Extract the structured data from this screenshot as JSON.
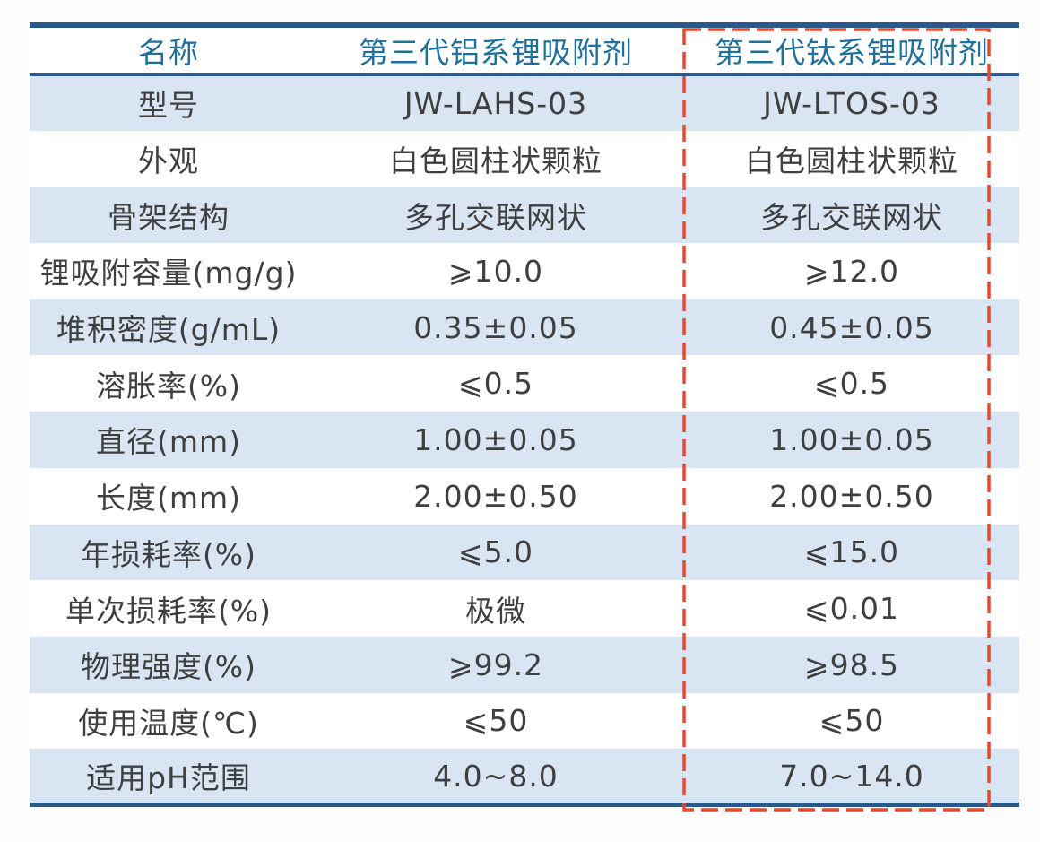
{
  "table": {
    "header": {
      "name_col": "名称",
      "aluminum_col": "第三代铝系锂吸附剂",
      "titanium_col": "第三代钛系锂吸附剂"
    },
    "rows": [
      {
        "label": "型号",
        "aluminum": "JW-LAHS-03",
        "titanium": "JW-LTOS-03"
      },
      {
        "label": "外观",
        "aluminum": "白色圆柱状颗粒",
        "titanium": "白色圆柱状颗粒"
      },
      {
        "label": "骨架结构",
        "aluminum": "多孔交联网状",
        "titanium": "多孔交联网状"
      },
      {
        "label": "锂吸附容量(mg/g)",
        "aluminum": "⩾10.0",
        "titanium": "⩾12.0"
      },
      {
        "label": "堆积密度(g/mL)",
        "aluminum": "0.35±0.05",
        "titanium": "0.45±0.05"
      },
      {
        "label": "溶胀率(%)",
        "aluminum": "⩽0.5",
        "titanium": "⩽0.5"
      },
      {
        "label": "直径(mm)",
        "aluminum": "1.00±0.05",
        "titanium": "1.00±0.05"
      },
      {
        "label": "长度(mm)",
        "aluminum": "2.00±0.50",
        "titanium": "2.00±0.50"
      },
      {
        "label": "年损耗率(%)",
        "aluminum": "⩽5.0",
        "titanium": "⩽15.0"
      },
      {
        "label": "单次损耗率(%)",
        "aluminum": "极微",
        "titanium": "⩽0.01"
      },
      {
        "label": "物理强度(%)",
        "aluminum": "⩾99.2",
        "titanium": "⩾98.5"
      },
      {
        "label": "使用温度(℃)",
        "aluminum": "⩽50",
        "titanium": "⩽50"
      },
      {
        "label": "适用pH范围",
        "aluminum": "4.0~8.0",
        "titanium": "7.0~14.0"
      }
    ],
    "highlight": {
      "target_column": "第三代钛系锂吸附剂",
      "style": "red-dashed-box"
    },
    "colors": {
      "border": "#29598B",
      "header_text": "#1E6F99",
      "alt_row": "#DAE5F3",
      "body_text": "#3F3F3F",
      "highlight": "#E54A2E",
      "page_bg": "#FDFDFD"
    }
  }
}
